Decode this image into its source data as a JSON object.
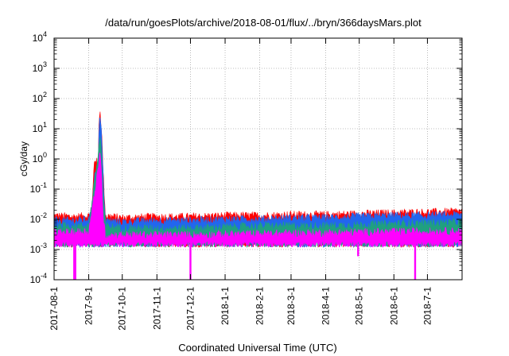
{
  "chart_data": {
    "type": "area",
    "title": "/data/run/goesPlots/archive/2018-08-01/flux/../bryn/366daysMars.plot",
    "xlabel": "Coordinated Universal Time (UTC)",
    "ylabel": "cGy/day",
    "y_scale": "log",
    "ylim": [
      0.0001,
      10000
    ],
    "y_ticks": [
      {
        "value": 0.0001,
        "base": "10",
        "exp": "-4"
      },
      {
        "value": 0.001,
        "base": "10",
        "exp": "-3"
      },
      {
        "value": 0.01,
        "base": "10",
        "exp": "-2"
      },
      {
        "value": 0.1,
        "base": "10",
        "exp": "-1"
      },
      {
        "value": 1,
        "base": "10",
        "exp": "0"
      },
      {
        "value": 10,
        "base": "10",
        "exp": "1"
      },
      {
        "value": 100,
        "base": "10",
        "exp": "2"
      },
      {
        "value": 1000,
        "base": "10",
        "exp": "3"
      },
      {
        "value": 10000,
        "base": "10",
        "exp": "4"
      }
    ],
    "xlim": [
      "2017-08-01",
      "2018-08-01"
    ],
    "x_ticks": [
      "2017-08-1",
      "2017-9-1",
      "2017-10-1",
      "2017-11-1",
      "2017-12-1",
      "2018-1-1",
      "2018-2-1",
      "2018-3-1",
      "2018-4-1",
      "2018-5-1",
      "2018-6-1",
      "2018-7-1"
    ],
    "x_tick_dates": [
      "2017-08-01",
      "2017-09-01",
      "2017-10-01",
      "2017-11-01",
      "2017-12-01",
      "2018-01-01",
      "2018-02-01",
      "2018-03-01",
      "2018-04-01",
      "2018-05-01",
      "2018-06-01",
      "2018-07-01"
    ],
    "grid": true,
    "series": [
      {
        "color": "#ff0000",
        "points": [
          [
            "2017-08-01",
            0.013
          ],
          [
            "2017-08-20",
            0.012
          ],
          [
            "2017-09-01",
            0.013
          ],
          [
            "2017-09-04",
            0.025
          ],
          [
            "2017-09-06",
            0.9
          ],
          [
            "2017-09-08",
            1.0
          ],
          [
            "2017-09-09",
            0.03
          ],
          [
            "2017-09-10",
            15
          ],
          [
            "2017-09-11",
            40
          ],
          [
            "2017-09-12",
            18
          ],
          [
            "2017-09-13",
            3
          ],
          [
            "2017-09-14",
            0.3
          ],
          [
            "2017-09-16",
            0.013
          ],
          [
            "2017-10-01",
            0.011
          ],
          [
            "2017-11-01",
            0.012
          ],
          [
            "2017-12-01",
            0.012
          ],
          [
            "2018-01-01",
            0.013
          ],
          [
            "2018-02-01",
            0.013
          ],
          [
            "2018-03-01",
            0.014
          ],
          [
            "2018-04-01",
            0.014
          ],
          [
            "2018-05-01",
            0.015
          ],
          [
            "2018-06-01",
            0.016
          ],
          [
            "2018-07-01",
            0.017
          ],
          [
            "2018-08-01",
            0.018
          ]
        ]
      },
      {
        "color": "#2266ee",
        "points": [
          [
            "2017-08-01",
            0.009
          ],
          [
            "2017-08-20",
            0.009
          ],
          [
            "2017-09-01",
            0.01
          ],
          [
            "2017-09-05",
            0.02
          ],
          [
            "2017-09-06",
            0.3
          ],
          [
            "2017-09-08",
            0.35
          ],
          [
            "2017-09-09",
            0.02
          ],
          [
            "2017-09-10",
            8
          ],
          [
            "2017-09-11",
            25
          ],
          [
            "2017-09-12",
            12
          ],
          [
            "2017-09-13",
            2
          ],
          [
            "2017-09-14",
            0.2
          ],
          [
            "2017-09-16",
            0.009
          ],
          [
            "2017-10-01",
            0.008
          ],
          [
            "2017-11-01",
            0.009
          ],
          [
            "2017-12-01",
            0.009
          ],
          [
            "2018-01-01",
            0.01
          ],
          [
            "2018-02-01",
            0.01
          ],
          [
            "2018-03-01",
            0.011
          ],
          [
            "2018-04-01",
            0.011
          ],
          [
            "2018-05-01",
            0.012
          ],
          [
            "2018-06-01",
            0.013
          ],
          [
            "2018-07-01",
            0.013
          ],
          [
            "2018-08-01",
            0.014
          ]
        ]
      },
      {
        "color": "#20a080",
        "points": [
          [
            "2017-08-01",
            0.006
          ],
          [
            "2017-09-01",
            0.006
          ],
          [
            "2017-09-10",
            2
          ],
          [
            "2017-09-11",
            6
          ],
          [
            "2017-09-12",
            3
          ],
          [
            "2017-09-14",
            0.05
          ],
          [
            "2017-09-16",
            0.006
          ],
          [
            "2017-10-01",
            0.005
          ],
          [
            "2017-12-01",
            0.005
          ],
          [
            "2018-02-01",
            0.006
          ],
          [
            "2018-04-01",
            0.006
          ],
          [
            "2018-06-01",
            0.007
          ],
          [
            "2018-08-01",
            0.008
          ]
        ]
      },
      {
        "color": "#ff00ff",
        "points": [
          [
            "2017-08-01",
            0.0035
          ],
          [
            "2017-09-01",
            0.004
          ],
          [
            "2017-09-10",
            0.6
          ],
          [
            "2017-09-11",
            2
          ],
          [
            "2017-09-12",
            1
          ],
          [
            "2017-09-14",
            0.01
          ],
          [
            "2017-09-16",
            0.003
          ],
          [
            "2017-10-01",
            0.003
          ],
          [
            "2017-12-01",
            0.003
          ],
          [
            "2018-02-01",
            0.0033
          ],
          [
            "2018-04-01",
            0.0035
          ],
          [
            "2018-06-01",
            0.0038
          ],
          [
            "2018-08-01",
            0.004
          ]
        ]
      }
    ],
    "band_floor": 0.0015,
    "dips": [
      {
        "date": "2017-08-19",
        "value": 0.0001
      },
      {
        "date": "2017-08-20",
        "value": 0.0001
      },
      {
        "date": "2017-12-01",
        "value": 0.0001
      },
      {
        "date": "2018-04-30",
        "value": 0.0006
      },
      {
        "date": "2018-06-20",
        "value": 0.0001
      }
    ]
  }
}
